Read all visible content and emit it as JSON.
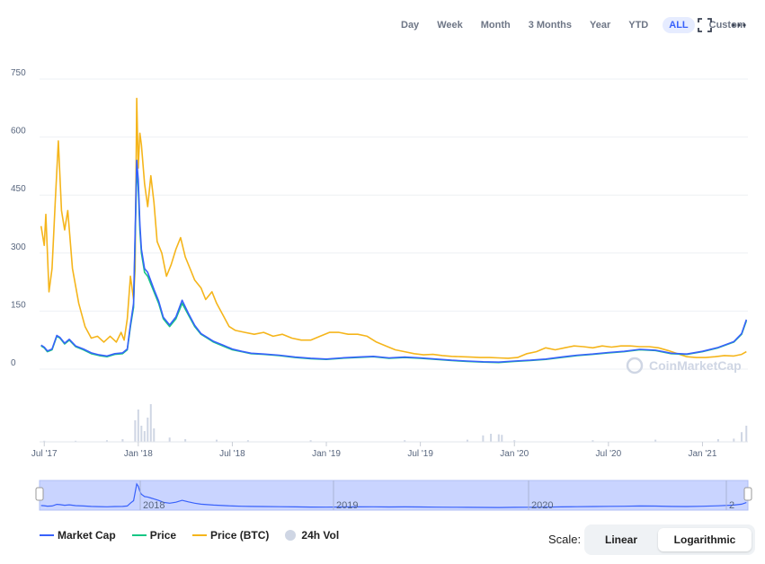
{
  "toolbar": {
    "ranges": [
      "Day",
      "Week",
      "Month",
      "3 Months",
      "Year",
      "YTD",
      "ALL",
      "Custom"
    ],
    "active_range": "ALL"
  },
  "watermark": "CoinMarketCap",
  "legend": [
    {
      "label": "Market Cap",
      "color": "#3861fb"
    },
    {
      "label": "Price",
      "color": "#16c784"
    },
    {
      "label": "Price (BTC)",
      "color": "#f5b51b"
    },
    {
      "label": "24h Vol",
      "color": "#cfd6e4"
    }
  ],
  "scale": {
    "label": "Scale:",
    "options": [
      "Linear",
      "Logarithmic"
    ],
    "active": "Logarithmic"
  },
  "navigator_labels": [
    "2018",
    "2019",
    "2020",
    "2"
  ],
  "chart_data": {
    "type": "line",
    "ylim": [
      0,
      750
    ],
    "yticks": [
      0,
      150,
      300,
      450,
      600,
      750
    ],
    "ytick_labels": [
      "0",
      "150",
      "300",
      "450",
      "600",
      "750"
    ],
    "xticks": [
      "Jul '17",
      "Jan '18",
      "Jul '18",
      "Jan '19",
      "Jul '19",
      "Jan '20",
      "Jul '20",
      "Jan '21"
    ],
    "x_months_since_jun17": [
      1,
      7,
      13,
      19,
      25,
      31,
      37,
      43
    ],
    "series": [
      {
        "name": "Price (BTC)",
        "color": "#f5b51b",
        "points": [
          [
            0.8,
            370
          ],
          [
            1.0,
            320
          ],
          [
            1.1,
            400
          ],
          [
            1.3,
            200
          ],
          [
            1.5,
            260
          ],
          [
            1.7,
            430
          ],
          [
            1.9,
            590
          ],
          [
            2.1,
            410
          ],
          [
            2.3,
            360
          ],
          [
            2.5,
            410
          ],
          [
            2.8,
            260
          ],
          [
            3.2,
            170
          ],
          [
            3.6,
            110
          ],
          [
            4.0,
            80
          ],
          [
            4.4,
            85
          ],
          [
            4.8,
            70
          ],
          [
            5.2,
            85
          ],
          [
            5.6,
            70
          ],
          [
            5.9,
            95
          ],
          [
            6.1,
            75
          ],
          [
            6.3,
            130
          ],
          [
            6.5,
            240
          ],
          [
            6.7,
            180
          ],
          [
            6.8,
            260
          ],
          [
            6.9,
            700
          ],
          [
            7.0,
            520
          ],
          [
            7.1,
            610
          ],
          [
            7.2,
            580
          ],
          [
            7.4,
            480
          ],
          [
            7.6,
            420
          ],
          [
            7.8,
            500
          ],
          [
            8.0,
            430
          ],
          [
            8.2,
            330
          ],
          [
            8.5,
            300
          ],
          [
            8.8,
            240
          ],
          [
            9.1,
            270
          ],
          [
            9.4,
            310
          ],
          [
            9.7,
            340
          ],
          [
            10.0,
            290
          ],
          [
            10.3,
            260
          ],
          [
            10.6,
            230
          ],
          [
            11.0,
            210
          ],
          [
            11.3,
            180
          ],
          [
            11.7,
            200
          ],
          [
            12.0,
            170
          ],
          [
            12.4,
            140
          ],
          [
            12.8,
            110
          ],
          [
            13.2,
            100
          ],
          [
            13.8,
            95
          ],
          [
            14.4,
            90
          ],
          [
            15.0,
            95
          ],
          [
            15.6,
            85
          ],
          [
            16.2,
            90
          ],
          [
            16.8,
            80
          ],
          [
            17.4,
            75
          ],
          [
            18.0,
            75
          ],
          [
            18.6,
            85
          ],
          [
            19.2,
            95
          ],
          [
            19.8,
            95
          ],
          [
            20.4,
            90
          ],
          [
            21.0,
            90
          ],
          [
            21.6,
            85
          ],
          [
            22.2,
            70
          ],
          [
            22.8,
            60
          ],
          [
            23.4,
            50
          ],
          [
            24.0,
            45
          ],
          [
            24.6,
            40
          ],
          [
            25.2,
            37
          ],
          [
            25.8,
            38
          ],
          [
            26.4,
            35
          ],
          [
            27.0,
            33
          ],
          [
            27.6,
            32
          ],
          [
            28.2,
            31
          ],
          [
            28.8,
            30
          ],
          [
            29.4,
            30
          ],
          [
            30.0,
            29
          ],
          [
            30.6,
            28
          ],
          [
            31.2,
            30
          ],
          [
            31.8,
            40
          ],
          [
            32.4,
            45
          ],
          [
            33.0,
            55
          ],
          [
            33.6,
            50
          ],
          [
            34.2,
            55
          ],
          [
            34.8,
            60
          ],
          [
            35.4,
            58
          ],
          [
            36.0,
            55
          ],
          [
            36.6,
            60
          ],
          [
            37.2,
            57
          ],
          [
            37.8,
            60
          ],
          [
            38.4,
            60
          ],
          [
            39.0,
            58
          ],
          [
            39.6,
            58
          ],
          [
            40.2,
            55
          ],
          [
            40.8,
            48
          ],
          [
            41.4,
            40
          ],
          [
            42.0,
            32
          ],
          [
            42.6,
            30
          ],
          [
            43.2,
            30
          ],
          [
            43.8,
            32
          ],
          [
            44.4,
            35
          ],
          [
            45.0,
            34
          ],
          [
            45.5,
            38
          ],
          [
            45.8,
            45
          ]
        ]
      },
      {
        "name": "Price",
        "color": "#16c784",
        "points": [
          [
            0.8,
            60
          ],
          [
            1.0,
            55
          ],
          [
            1.2,
            45
          ],
          [
            1.5,
            50
          ],
          [
            1.8,
            85
          ],
          [
            2.0,
            80
          ],
          [
            2.3,
            65
          ],
          [
            2.6,
            75
          ],
          [
            3.0,
            58
          ],
          [
            3.5,
            50
          ],
          [
            4.0,
            40
          ],
          [
            4.5,
            35
          ],
          [
            5.0,
            32
          ],
          [
            5.5,
            38
          ],
          [
            6.0,
            40
          ],
          [
            6.3,
            50
          ],
          [
            6.5,
            110
          ],
          [
            6.7,
            160
          ],
          [
            6.9,
            520
          ],
          [
            7.0,
            470
          ],
          [
            7.1,
            360
          ],
          [
            7.2,
            300
          ],
          [
            7.4,
            250
          ],
          [
            7.6,
            240
          ],
          [
            7.8,
            220
          ],
          [
            8.0,
            200
          ],
          [
            8.3,
            170
          ],
          [
            8.6,
            130
          ],
          [
            9.0,
            110
          ],
          [
            9.4,
            130
          ],
          [
            9.8,
            170
          ],
          [
            10.2,
            140
          ],
          [
            10.6,
            110
          ],
          [
            11.0,
            90
          ],
          [
            11.4,
            80
          ],
          [
            11.8,
            70
          ],
          [
            12.4,
            60
          ],
          [
            13.0,
            50
          ],
          [
            13.6,
            45
          ],
          [
            14.2,
            40
          ],
          [
            15.0,
            38
          ],
          [
            16.0,
            35
          ],
          [
            17.0,
            30
          ],
          [
            18.0,
            27
          ],
          [
            19.0,
            25
          ],
          [
            20.0,
            28
          ],
          [
            21.0,
            30
          ],
          [
            22.0,
            32
          ],
          [
            23.0,
            28
          ],
          [
            24.0,
            30
          ],
          [
            25.0,
            28
          ],
          [
            26.0,
            25
          ],
          [
            27.0,
            22
          ],
          [
            28.0,
            20
          ],
          [
            29.0,
            18
          ],
          [
            30.0,
            17
          ],
          [
            31.0,
            20
          ],
          [
            32.0,
            22
          ],
          [
            33.0,
            25
          ],
          [
            34.0,
            30
          ],
          [
            35.0,
            35
          ],
          [
            36.0,
            38
          ],
          [
            37.0,
            42
          ],
          [
            38.0,
            45
          ],
          [
            39.0,
            50
          ],
          [
            40.0,
            48
          ],
          [
            41.0,
            40
          ],
          [
            42.0,
            38
          ],
          [
            43.0,
            45
          ],
          [
            44.0,
            55
          ],
          [
            45.0,
            70
          ],
          [
            45.5,
            90
          ],
          [
            45.8,
            125
          ]
        ]
      },
      {
        "name": "Market Cap",
        "color": "#3861fb",
        "points": [
          [
            0.8,
            62
          ],
          [
            1.0,
            57
          ],
          [
            1.2,
            47
          ],
          [
            1.5,
            52
          ],
          [
            1.8,
            87
          ],
          [
            2.0,
            82
          ],
          [
            2.3,
            67
          ],
          [
            2.6,
            77
          ],
          [
            3.0,
            60
          ],
          [
            3.5,
            52
          ],
          [
            4.0,
            42
          ],
          [
            4.5,
            37
          ],
          [
            5.0,
            34
          ],
          [
            5.5,
            40
          ],
          [
            6.0,
            42
          ],
          [
            6.3,
            52
          ],
          [
            6.5,
            115
          ],
          [
            6.7,
            170
          ],
          [
            6.9,
            540
          ],
          [
            7.0,
            490
          ],
          [
            7.1,
            375
          ],
          [
            7.2,
            310
          ],
          [
            7.4,
            260
          ],
          [
            7.6,
            250
          ],
          [
            7.8,
            228
          ],
          [
            8.0,
            206
          ],
          [
            8.3,
            176
          ],
          [
            8.6,
            134
          ],
          [
            9.0,
            114
          ],
          [
            9.4,
            135
          ],
          [
            9.8,
            178
          ],
          [
            10.2,
            144
          ],
          [
            10.6,
            113
          ],
          [
            11.0,
            92
          ],
          [
            11.4,
            82
          ],
          [
            11.8,
            72
          ],
          [
            12.4,
            62
          ],
          [
            13.0,
            52
          ],
          [
            13.6,
            46
          ],
          [
            14.2,
            41
          ],
          [
            15.0,
            39
          ],
          [
            16.0,
            36
          ],
          [
            17.0,
            31
          ],
          [
            18.0,
            28
          ],
          [
            19.0,
            26
          ],
          [
            20.0,
            29
          ],
          [
            21.0,
            31
          ],
          [
            22.0,
            33
          ],
          [
            23.0,
            29
          ],
          [
            24.0,
            31
          ],
          [
            25.0,
            29
          ],
          [
            26.0,
            26
          ],
          [
            27.0,
            23
          ],
          [
            28.0,
            21
          ],
          [
            29.0,
            19
          ],
          [
            30.0,
            18
          ],
          [
            31.0,
            21
          ],
          [
            32.0,
            23
          ],
          [
            33.0,
            26
          ],
          [
            34.0,
            31
          ],
          [
            35.0,
            36
          ],
          [
            36.0,
            39
          ],
          [
            37.0,
            43
          ],
          [
            38.0,
            46
          ],
          [
            39.0,
            51
          ],
          [
            40.0,
            49
          ],
          [
            41.0,
            41
          ],
          [
            42.0,
            39
          ],
          [
            43.0,
            46
          ],
          [
            44.0,
            56
          ],
          [
            45.0,
            71
          ],
          [
            45.5,
            92
          ],
          [
            45.8,
            128
          ]
        ]
      }
    ],
    "volume_series": {
      "name": "24h Vol",
      "color": "#cfd6e4",
      "max": 100,
      "points": [
        [
          1,
          2
        ],
        [
          3,
          2
        ],
        [
          5,
          3
        ],
        [
          6,
          5
        ],
        [
          6.8,
          40
        ],
        [
          7.0,
          60
        ],
        [
          7.2,
          30
        ],
        [
          7.4,
          20
        ],
        [
          7.6,
          45
        ],
        [
          7.8,
          70
        ],
        [
          8.0,
          25
        ],
        [
          9,
          8
        ],
        [
          10,
          5
        ],
        [
          12,
          4
        ],
        [
          14,
          3
        ],
        [
          18,
          3
        ],
        [
          24,
          3
        ],
        [
          28,
          4
        ],
        [
          29,
          12
        ],
        [
          29.5,
          15
        ],
        [
          30,
          14
        ],
        [
          30.2,
          13
        ],
        [
          31,
          3
        ],
        [
          36,
          3
        ],
        [
          40,
          4
        ],
        [
          44,
          5
        ],
        [
          45,
          6
        ],
        [
          45.5,
          18
        ],
        [
          45.8,
          30
        ]
      ]
    },
    "legend_position": "bottom-left",
    "grid": true
  }
}
